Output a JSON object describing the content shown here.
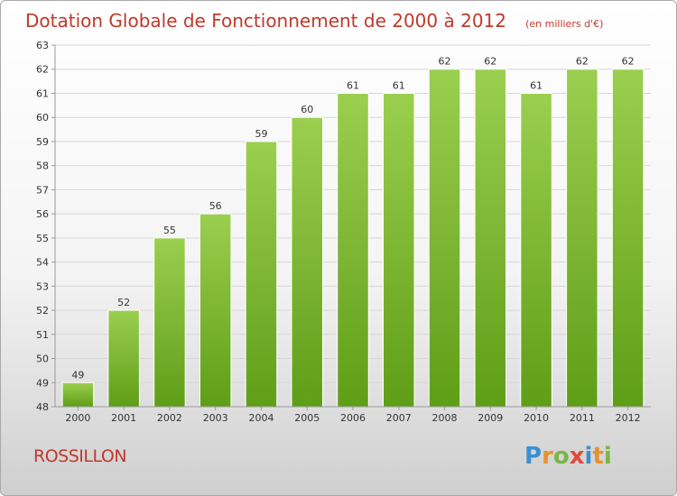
{
  "chart_data": {
    "type": "bar",
    "title": "Dotation Globale de Fonctionnement de 2000 à 2012",
    "unit": "(en milliers d'€)",
    "categories": [
      "2000",
      "2001",
      "2002",
      "2003",
      "2004",
      "2005",
      "2006",
      "2007",
      "2008",
      "2009",
      "2010",
      "2011",
      "2012"
    ],
    "values": [
      49,
      52,
      55,
      56,
      59,
      60,
      61,
      61,
      62,
      62,
      61,
      62,
      62
    ],
    "ylim": [
      48,
      63
    ],
    "yticks": [
      48,
      49,
      50,
      51,
      52,
      53,
      54,
      55,
      56,
      57,
      58,
      59,
      60,
      61,
      62,
      63
    ],
    "grid": true,
    "bar_color_top": "#9bcf4f",
    "bar_color_bottom": "#5f9e17"
  },
  "commune": "ROSSILLON",
  "logo": {
    "letters": [
      "P",
      "r",
      "o",
      "x",
      "i",
      "t",
      "i"
    ],
    "colors": [
      "#3a8fd0",
      "#e8912c",
      "#7ab648",
      "#e14b3b",
      "#3a8fd0",
      "#e8912c",
      "#7ab648"
    ]
  },
  "colors": {
    "title": "#c0392b"
  }
}
